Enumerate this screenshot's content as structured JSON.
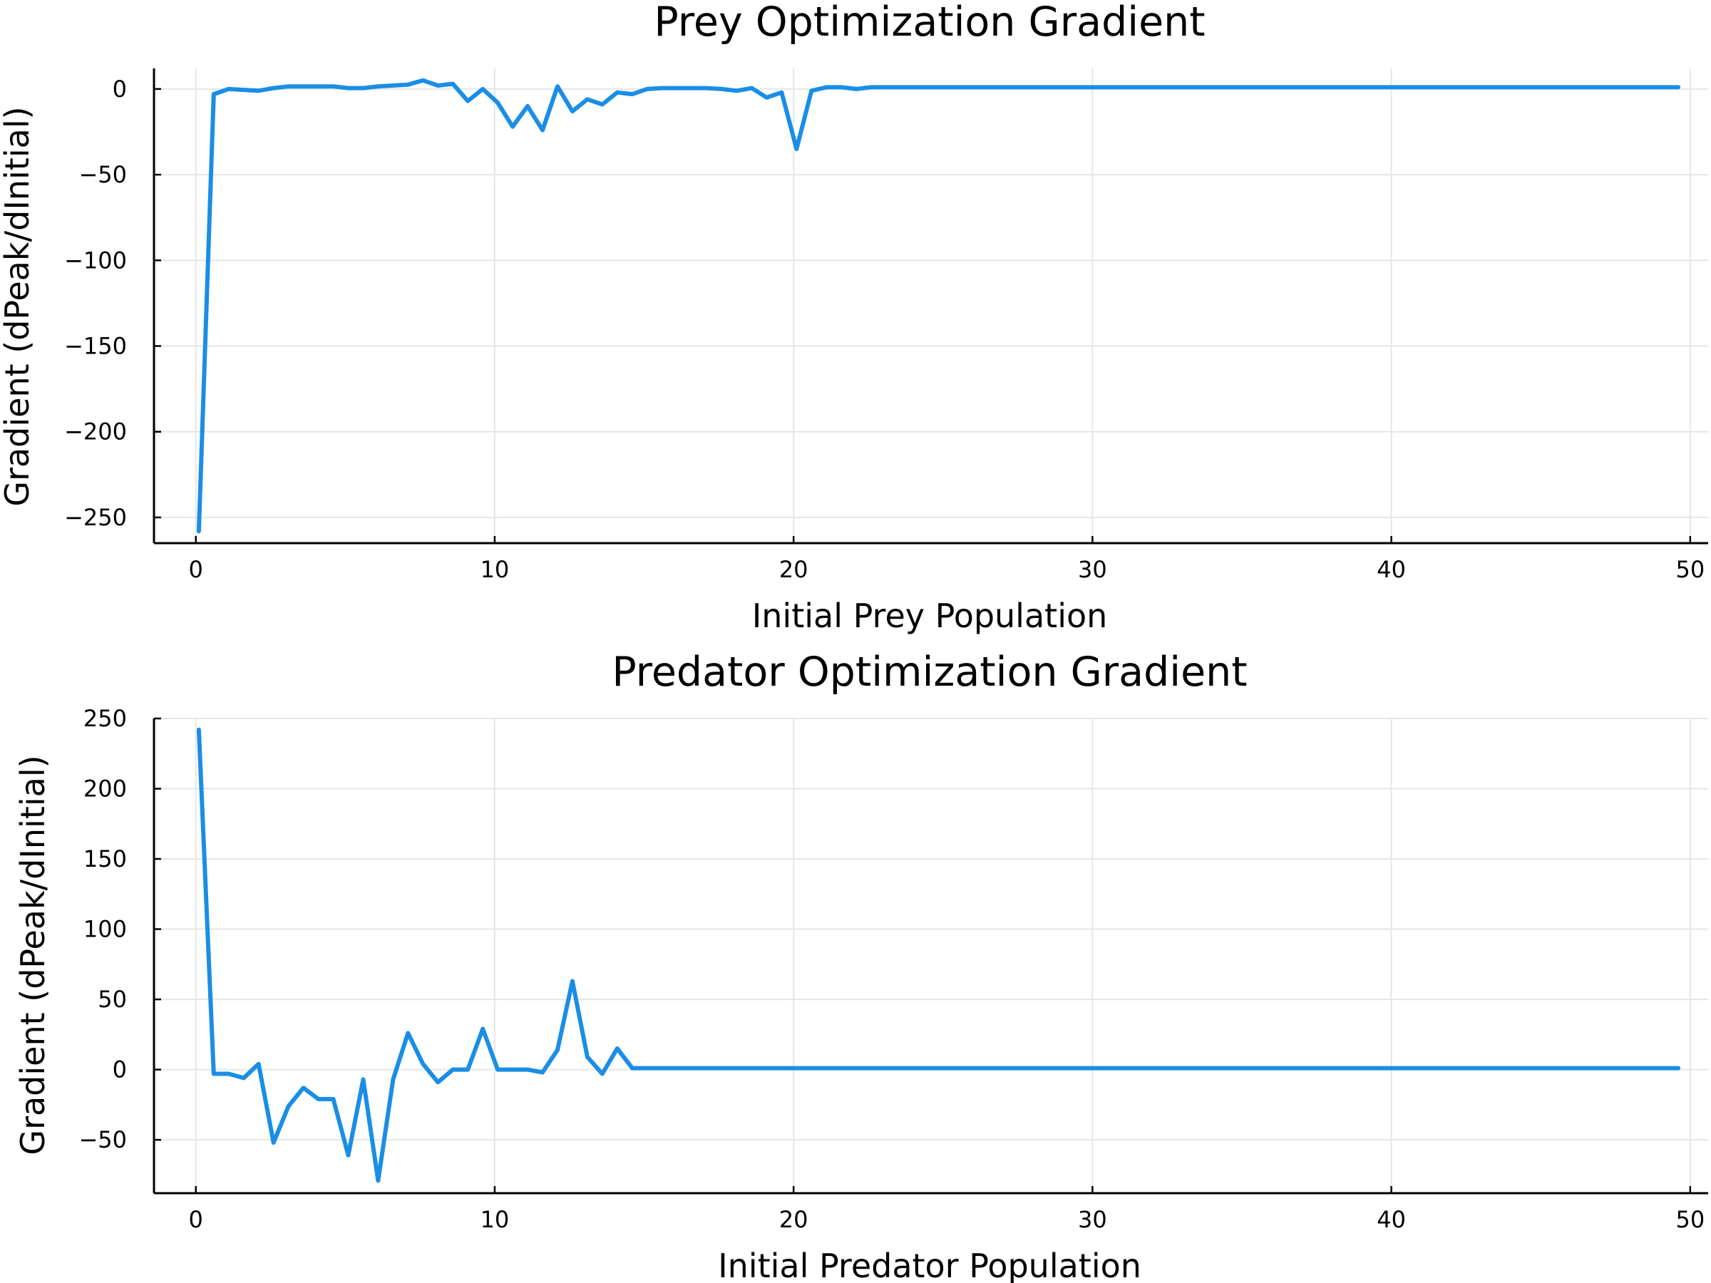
{
  "chart_data": [
    {
      "type": "line",
      "title": "Prey Optimization Gradient",
      "xlabel": "Initial Prey Population",
      "ylabel": "Gradient (dPeak/dInitial)",
      "xlim": [
        -1.4,
        50.6
      ],
      "ylim": [
        -265,
        12
      ],
      "xticks": [
        0,
        10,
        20,
        30,
        40,
        50
      ],
      "xtick_labels": [
        "0",
        "10",
        "20",
        "30",
        "40",
        "50"
      ],
      "yticks": [
        0,
        -50,
        -100,
        -150,
        -200,
        -250
      ],
      "ytick_labels": [
        "0",
        "−50",
        "−100",
        "−150",
        "−200",
        "−250"
      ],
      "grid": true,
      "color": "#1a8ee6",
      "series": [
        {
          "x": [
            0.1,
            0.6,
            1.1,
            1.6,
            2.1,
            2.6,
            3.1,
            3.6,
            4.1,
            4.6,
            5.1,
            5.6,
            6.1,
            6.6,
            7.1,
            7.6,
            8.1,
            8.6,
            9.1,
            9.6,
            10.1,
            10.6,
            11.1,
            11.6,
            12.1,
            12.6,
            13.1,
            13.6,
            14.1,
            14.6,
            15.1,
            15.6,
            16.1,
            16.6,
            17.1,
            17.6,
            18.1,
            18.6,
            19.1,
            19.6,
            20.1,
            20.6,
            21.1,
            21.6,
            22.1,
            22.6,
            23.1,
            24,
            26,
            28,
            30,
            32,
            34,
            36,
            38,
            40,
            42,
            44,
            46,
            48,
            49.6
          ],
          "y": [
            -258,
            -3,
            0,
            -0.5,
            -1,
            0.5,
            1.5,
            1.5,
            1.5,
            1.5,
            0.5,
            0.5,
            1.5,
            2,
            2.5,
            5,
            2,
            3,
            -7,
            0,
            -8,
            -22,
            -10,
            -24,
            1.5,
            -13,
            -6,
            -9,
            -2,
            -3,
            0,
            0.5,
            0.5,
            0.5,
            0.5,
            0,
            -1,
            0.5,
            -5,
            -2,
            -35,
            -1,
            1,
            1,
            0,
            1,
            1,
            1,
            1,
            1,
            1,
            1,
            1,
            1,
            1,
            1,
            1,
            1,
            1,
            1,
            1
          ]
        }
      ]
    },
    {
      "type": "line",
      "title": "Predator Optimization Gradient",
      "xlabel": "Initial Predator Population",
      "ylabel": "Gradient (dPeak/dInitial)",
      "xlim": [
        -1.4,
        50.6
      ],
      "ylim": [
        -88,
        250
      ],
      "xticks": [
        0,
        10,
        20,
        30,
        40,
        50
      ],
      "xtick_labels": [
        "0",
        "10",
        "20",
        "30",
        "40",
        "50"
      ],
      "yticks": [
        250,
        200,
        150,
        100,
        50,
        0,
        -50
      ],
      "ytick_labels": [
        "250",
        "200",
        "150",
        "100",
        "50",
        "0",
        "−50"
      ],
      "grid": true,
      "color": "#1a8ee6",
      "series": [
        {
          "x": [
            0.1,
            0.6,
            1.1,
            1.6,
            2.1,
            2.6,
            3.1,
            3.6,
            4.1,
            4.6,
            5.1,
            5.6,
            6.1,
            6.6,
            7.1,
            7.6,
            8.1,
            8.6,
            9.1,
            9.6,
            10.1,
            10.6,
            11.1,
            11.6,
            12.1,
            12.6,
            13.1,
            13.6,
            14.1,
            14.6,
            16,
            20,
            25,
            30,
            35,
            40,
            45,
            49.6
          ],
          "y": [
            242,
            -3,
            -3,
            -6,
            4,
            -52,
            -26,
            -13,
            -21,
            -21,
            -61,
            -7,
            -79,
            -7,
            26,
            4,
            -9,
            0,
            0,
            29,
            0,
            0,
            0,
            -2,
            14,
            63,
            9,
            -3,
            15,
            1,
            1,
            1,
            1,
            1,
            1,
            1,
            1,
            1
          ]
        }
      ]
    }
  ]
}
